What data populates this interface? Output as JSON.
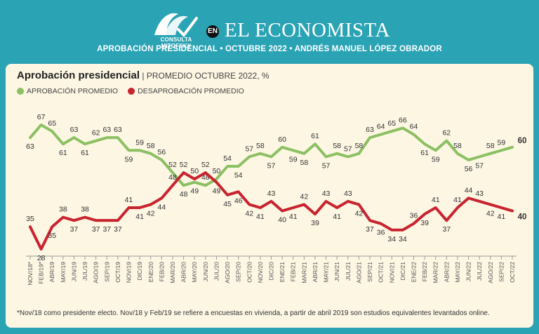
{
  "header": {
    "logo_text": "CONSULTA MITOFSKY",
    "en_badge": "EN",
    "brand": "EL ECONOMISTA",
    "subtitle": "APROBACIÓN PRESIDENCIAL • OCTUBRE 2022 • ANDRÉS MANUEL LÓPEZ OBRADOR"
  },
  "chart": {
    "title_bold": "Aprobación presidencial",
    "title_sub": " | PROMEDIO OCTUBRE 2022, %",
    "footnote": "*Nov/18 como presidente electo. Nov/18 y Feb/19 se refiere a encuestas en vivienda, a partir de abril 2019 son estudios equivalentes levantados online."
  },
  "colors": {
    "approval": "#8cc063",
    "disapproval": "#c8242f",
    "background": "#2aa3b4"
  },
  "chart_data": {
    "type": "line",
    "title": "Aprobación presidencial",
    "subtitle": "PROMEDIO OCTUBRE 2022, %",
    "x": [
      "NOV/18*",
      "FEB/19*",
      "ABR/19",
      "MAY/19",
      "JUN/19",
      "JUL/19",
      "AGO/19",
      "SEP/19",
      "OCT/19",
      "NOV/19",
      "DIC/19",
      "ENE/20",
      "FEB/20",
      "MAR/20",
      "ABR/20",
      "MAY/20",
      "JUN/20",
      "JUL/20",
      "AGO/20",
      "SEP/20",
      "OCT/20",
      "NOV/20",
      "DIC/20",
      "ENE/21",
      "FEB/21",
      "MAR/21",
      "ABR/21",
      "MAY/21",
      "JUN/21",
      "JUL/21",
      "AGO/21",
      "SEP/21",
      "OCT/21",
      "NOV/21",
      "DIC/21",
      "ENE/22",
      "FEB/22",
      "MAR/22",
      "ABR/22",
      "MAY/22",
      "JUN/22",
      "JUL/22",
      "AGO/22",
      "SEP/22",
      "OCT/22"
    ],
    "series": [
      {
        "name": "APROBACIÓN PROMEDIO",
        "values": [
          63,
          67,
          65,
          61,
          63,
          61,
          62,
          63,
          63,
          59,
          59,
          58,
          56,
          52,
          48,
          49,
          48,
          50,
          54,
          54,
          57,
          58,
          57,
          60,
          59,
          58,
          61,
          57,
          58,
          57,
          58,
          63,
          64,
          65,
          66,
          64,
          61,
          59,
          62,
          58,
          56,
          57,
          58,
          59,
          60
        ]
      },
      {
        "name": "DESAPROBACIÓN PROMEDIO",
        "values": [
          35,
          28,
          35,
          38,
          37,
          38,
          37,
          37,
          37,
          41,
          41,
          42,
          44,
          48,
          52,
          50,
          52,
          49,
          45,
          46,
          42,
          41,
          43,
          40,
          41,
          42,
          39,
          43,
          41,
          43,
          42,
          37,
          36,
          34,
          34,
          36,
          39,
          41,
          37,
          41,
          44,
          43,
          42,
          41,
          40
        ]
      }
    ],
    "label_positions": {
      "approval": [
        "below",
        "above",
        "above",
        "below",
        "above",
        "below",
        "above",
        "above",
        "above",
        "below",
        "above",
        "above",
        "above",
        "above",
        "below",
        "below",
        "above",
        "above",
        "above",
        "below",
        "above",
        "above",
        "below",
        "above",
        "below",
        "below",
        "above",
        "below",
        "above",
        "above",
        "above",
        "above",
        "above",
        "above",
        "above",
        "above",
        "below",
        "below",
        "above",
        "above",
        "below",
        "below",
        "above",
        "above",
        "above"
      ],
      "disapproval": [
        "above",
        "below",
        "below",
        "above",
        "below",
        "above",
        "below",
        "below",
        "below",
        "above",
        "below",
        "below",
        "below",
        "above",
        "above",
        "above",
        "above",
        "below",
        "below",
        "below",
        "below",
        "below",
        "above",
        "below",
        "below",
        "above",
        "below",
        "above",
        "below",
        "above",
        "below",
        "below",
        "below",
        "below",
        "below",
        "above",
        "below",
        "above",
        "below",
        "above",
        "above",
        "above",
        "below",
        "below",
        "below"
      ]
    },
    "bold_last_label": true
  }
}
